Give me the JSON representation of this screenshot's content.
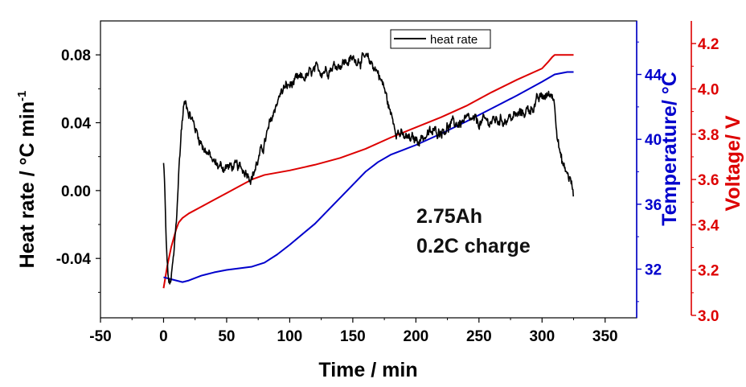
{
  "chart_data": {
    "type": "line",
    "title": "",
    "xlabel": "Time / min",
    "xlim": [
      -50,
      375
    ],
    "xticks": [
      -50,
      0,
      50,
      100,
      150,
      200,
      250,
      300,
      350
    ],
    "axes": {
      "left": {
        "label": "Heat rate / °C min",
        "label_sup": "-1",
        "color": "#000000",
        "ylim": [
          -0.075,
          0.1
        ],
        "ticks": [
          -0.04,
          0.0,
          0.04,
          0.08
        ],
        "tick_labels": [
          "-0.04",
          "0.00",
          "0.04",
          "0.08"
        ]
      },
      "temp": {
        "label": "Temperature/ °C",
        "color": "#0000cc",
        "ylim": [
          29.0,
          47.3
        ],
        "ticks": [
          32,
          36,
          40,
          44
        ],
        "tick_labels": [
          "32",
          "36",
          "40",
          "44"
        ]
      },
      "volt": {
        "label": "Voltage/ V",
        "color": "#dd0000",
        "ylim": [
          3.0,
          4.3
        ],
        "ticks": [
          3.0,
          3.2,
          3.4,
          3.6,
          3.8,
          4.0,
          4.2
        ],
        "tick_labels": [
          "3.0",
          "3.2",
          "3.4",
          "3.6",
          "3.8",
          "4.0",
          "4.2"
        ]
      }
    },
    "legend": {
      "entry": "heat rate",
      "placement": "top-right"
    },
    "annotations": [
      "2.75Ah",
      "0.2C charge"
    ],
    "series": [
      {
        "name": "heat rate",
        "axis": "left",
        "color": "#000000",
        "noise": 0.0022,
        "x": [
          0,
          1,
          2,
          3,
          4,
          5,
          6,
          8,
          10,
          12,
          14,
          16,
          18,
          20,
          25,
          30,
          35,
          40,
          45,
          50,
          55,
          60,
          65,
          68,
          70,
          72,
          75,
          80,
          85,
          90,
          95,
          100,
          110,
          120,
          130,
          140,
          150,
          155,
          160,
          165,
          170,
          175,
          180,
          185,
          190,
          195,
          200,
          210,
          220,
          230,
          240,
          250,
          260,
          270,
          280,
          290,
          300,
          305,
          308,
          310,
          312,
          315,
          318,
          320,
          322,
          324,
          325
        ],
        "y": [
          0.016,
          0.0,
          -0.03,
          -0.045,
          -0.053,
          -0.056,
          -0.052,
          -0.04,
          -0.02,
          0.01,
          0.035,
          0.05,
          0.052,
          0.047,
          0.037,
          0.028,
          0.022,
          0.016,
          0.014,
          0.014,
          0.014,
          0.013,
          0.012,
          0.01,
          0.008,
          0.012,
          0.018,
          0.028,
          0.04,
          0.053,
          0.06,
          0.062,
          0.066,
          0.07,
          0.072,
          0.075,
          0.077,
          0.078,
          0.077,
          0.075,
          0.07,
          0.06,
          0.045,
          0.036,
          0.031,
          0.03,
          0.03,
          0.033,
          0.036,
          0.039,
          0.041,
          0.04,
          0.041,
          0.042,
          0.044,
          0.048,
          0.055,
          0.056,
          0.057,
          0.052,
          0.035,
          0.018,
          0.012,
          0.01,
          0.007,
          0.002,
          -0.006
        ]
      },
      {
        "name": "Temperature",
        "axis": "temp",
        "color": "#0000cc",
        "x": [
          0,
          5,
          10,
          15,
          20,
          30,
          40,
          50,
          60,
          70,
          80,
          90,
          100,
          120,
          140,
          160,
          170,
          180,
          190,
          200,
          220,
          240,
          260,
          280,
          300,
          310,
          320,
          325
        ],
        "y": [
          31.5,
          31.4,
          31.3,
          31.2,
          31.3,
          31.6,
          31.8,
          31.95,
          32.05,
          32.15,
          32.4,
          32.9,
          33.5,
          34.8,
          36.4,
          38.0,
          38.6,
          39.05,
          39.35,
          39.65,
          40.35,
          41.1,
          41.9,
          42.7,
          43.55,
          44.0,
          44.15,
          44.15
        ]
      },
      {
        "name": "Voltage",
        "axis": "volt",
        "color": "#dd0000",
        "x": [
          0,
          3,
          6,
          10,
          12,
          15,
          20,
          30,
          40,
          50,
          60,
          70,
          80,
          100,
          120,
          140,
          160,
          180,
          200,
          220,
          240,
          260,
          280,
          300,
          305,
          308,
          310,
          315,
          320,
          325
        ],
        "y": [
          3.12,
          3.22,
          3.3,
          3.38,
          3.41,
          3.43,
          3.45,
          3.48,
          3.51,
          3.54,
          3.57,
          3.6,
          3.62,
          3.64,
          3.665,
          3.695,
          3.735,
          3.785,
          3.83,
          3.875,
          3.925,
          3.985,
          4.04,
          4.09,
          4.12,
          4.14,
          4.15,
          4.15,
          4.15,
          4.15
        ]
      }
    ]
  }
}
